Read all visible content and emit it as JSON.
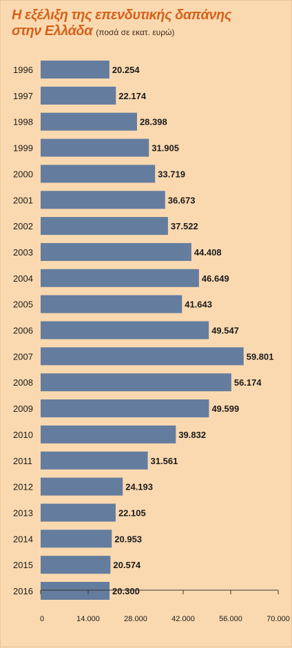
{
  "chart_data": {
    "type": "bar",
    "orientation": "horizontal",
    "title": "Η εξέλιξη της επενδυτικής δαπάνης στην Ελλάδα",
    "subtitle": "(ποσά σε εκατ. ευρώ)",
    "categories": [
      "1996",
      "1997",
      "1998",
      "1999",
      "2000",
      "2001",
      "2002",
      "2003",
      "2004",
      "2005",
      "2006",
      "2007",
      "2008",
      "2009",
      "2010",
      "2011",
      "2012",
      "2013",
      "2014",
      "2015",
      "2016"
    ],
    "values": [
      20254,
      22174,
      28398,
      31905,
      33719,
      36673,
      37522,
      44408,
      46649,
      41643,
      49547,
      59801,
      56174,
      49599,
      39832,
      31561,
      24193,
      22105,
      20953,
      20574,
      20300
    ],
    "value_labels": [
      "20.254",
      "22.174",
      "28.398",
      "31.905",
      "33.719",
      "36.673",
      "37.522",
      "44.408",
      "46.649",
      "41.643",
      "49.547",
      "59.801",
      "56.174",
      "49.599",
      "39.832",
      "31.561",
      "24.193",
      "22.105",
      "20.953",
      "20.574",
      "20.300"
    ],
    "xlim": [
      0,
      70000
    ],
    "xticks": [
      0,
      14000,
      28000,
      42000,
      56000,
      70000
    ],
    "xtick_labels": [
      "0",
      "14.000",
      "28.000",
      "42.000",
      "56.000",
      "70.000"
    ],
    "colors": {
      "bar": "#647d9e",
      "background": "#fbd9b0",
      "title": "#d4621c"
    },
    "grid": false
  }
}
